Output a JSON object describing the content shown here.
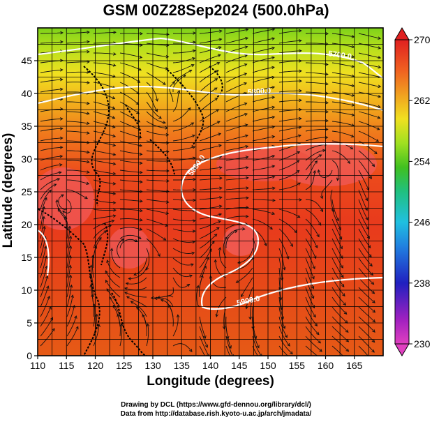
{
  "title": "GSM 00Z28Sep2024 (500.0hPa)",
  "xlabel": "Longitude (degrees)",
  "ylabel": "Latitude  (degrees)",
  "credits": [
    "Drawing by DCL (https://www.gfd-dennou.org/library/dcl/)",
    "Data from http://database.rish.kyoto-u.ac.jp/arch/jmadata/"
  ],
  "map": {
    "lon_range": [
      110,
      170
    ],
    "lat_range": [
      0,
      50
    ],
    "x_ticks": [
      110,
      115,
      120,
      125,
      130,
      135,
      140,
      145,
      150,
      155,
      160,
      165
    ],
    "y_ticks": [
      0,
      5,
      10,
      15,
      20,
      25,
      30,
      35,
      40,
      45
    ],
    "grid": true,
    "contour_labels": [
      "5880.0",
      "5900.0",
      "5700.0",
      "5800.0"
    ]
  },
  "colorbar": {
    "min": 230,
    "max": 270,
    "tick_labels": [
      "270",
      "262",
      "254",
      "246",
      "238",
      "230"
    ],
    "colors": [
      "#e040c0",
      "#8020c0",
      "#2020c0",
      "#2080e0",
      "#20c0e0",
      "#20c080",
      "#40c020",
      "#a0e020",
      "#f0e020",
      "#f0a020",
      "#f06020",
      "#e02020"
    ]
  }
}
